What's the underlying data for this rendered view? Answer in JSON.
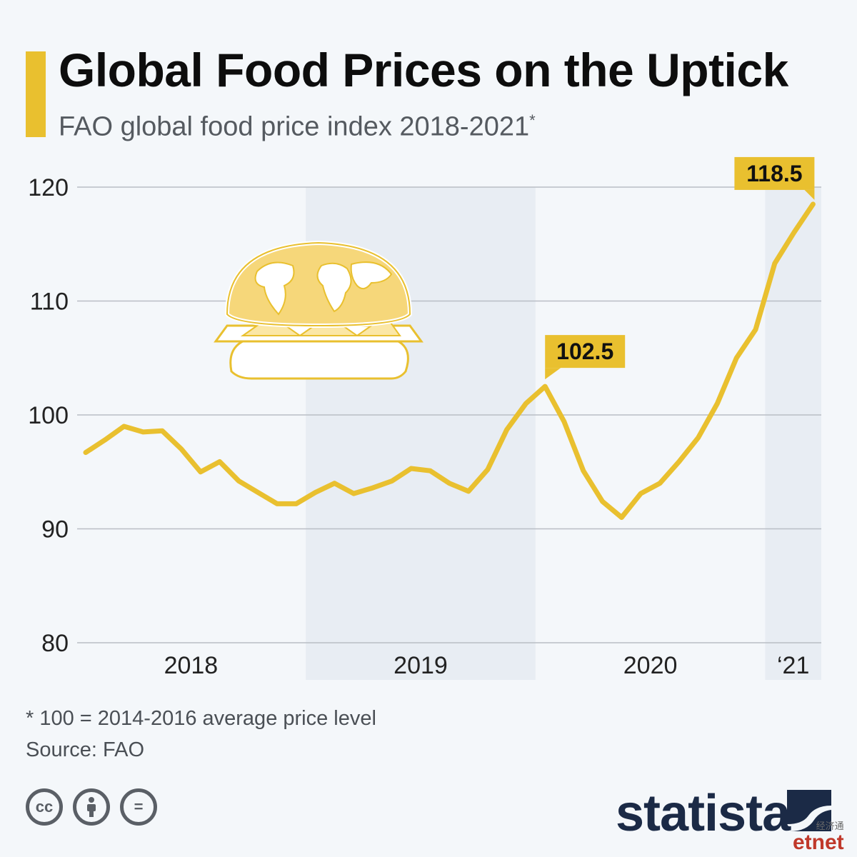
{
  "header": {
    "title": "Global Food Prices on the Uptick",
    "subtitle": "FAO global food price index 2018-2021",
    "subtitle_mark": "*"
  },
  "chart_data": {
    "type": "line",
    "x": [
      "2018-01",
      "2018-02",
      "2018-03",
      "2018-04",
      "2018-05",
      "2018-06",
      "2018-07",
      "2018-08",
      "2018-09",
      "2018-10",
      "2018-11",
      "2018-12",
      "2019-01",
      "2019-02",
      "2019-03",
      "2019-04",
      "2019-05",
      "2019-06",
      "2019-07",
      "2019-08",
      "2019-09",
      "2019-10",
      "2019-11",
      "2019-12",
      "2020-01",
      "2020-02",
      "2020-03",
      "2020-04",
      "2020-05",
      "2020-06",
      "2020-07",
      "2020-08",
      "2020-09",
      "2020-10",
      "2020-11",
      "2020-12",
      "2021-01",
      "2021-02",
      "2021-03"
    ],
    "values": [
      96.7,
      97.8,
      99.0,
      98.5,
      98.6,
      97.0,
      95.0,
      95.9,
      94.2,
      93.2,
      92.2,
      92.2,
      93.2,
      94.0,
      93.1,
      93.6,
      94.2,
      95.3,
      95.1,
      94.0,
      93.3,
      95.2,
      98.7,
      101.0,
      102.5,
      99.4,
      95.1,
      92.4,
      91.0,
      93.1,
      94.0,
      95.9,
      98.0,
      101.0,
      105.0,
      107.5,
      113.3,
      116.0,
      118.5
    ],
    "ylim": [
      80,
      120
    ],
    "yticks": [
      80,
      90,
      100,
      110,
      120
    ],
    "period_labels": [
      "2018",
      "2019",
      "2020",
      "‘21"
    ],
    "grid": true,
    "shaded_periods": [
      "2019",
      "‘21"
    ],
    "annotations": [
      {
        "x": "2020-01",
        "value": 102.5,
        "label": "102.5"
      },
      {
        "x": "2021-03",
        "value": 118.5,
        "label": "118.5"
      }
    ],
    "line_color": "#e9c02f",
    "shade_color": "#e8edf3",
    "grid_color": "#b9bec5"
  },
  "illustration": {
    "icon": "globe-burger-icon"
  },
  "footer": {
    "footnote": "* 100 = 2014-2016 average price level",
    "source": "Source: FAO",
    "license_icons": [
      "cc-icon",
      "attribution-icon",
      "no-derivatives-icon"
    ],
    "license_labels": [
      "cc",
      "="
    ],
    "brand": "statista",
    "watermark_cn": "经济通",
    "watermark": "etnet"
  }
}
